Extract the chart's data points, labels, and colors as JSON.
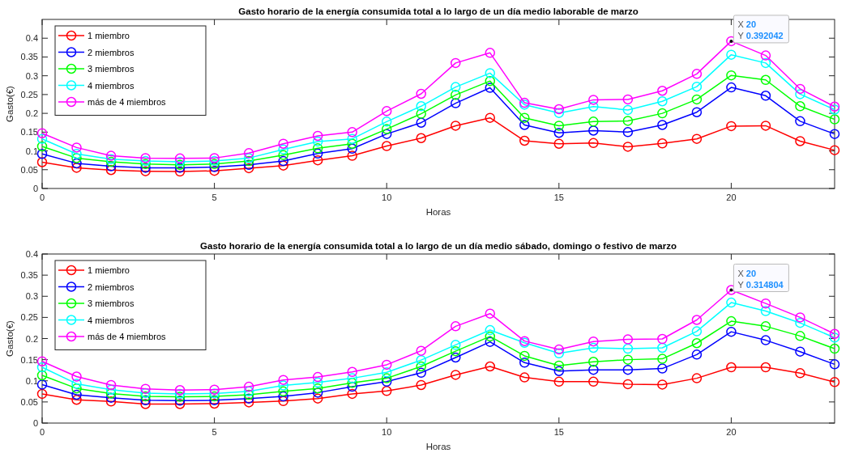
{
  "chart_data": [
    {
      "type": "line",
      "title": "Gasto horario de la energía consumida total a lo largo de un día medio laborable de marzo",
      "xlabel": "Horas",
      "ylabel": "Gasto(€)",
      "x": [
        0,
        1,
        2,
        3,
        4,
        5,
        6,
        7,
        8,
        9,
        10,
        11,
        12,
        13,
        14,
        15,
        16,
        17,
        18,
        19,
        20,
        21,
        22,
        23
      ],
      "series": [
        {
          "name": "1 miembro",
          "color": "#ff0000",
          "values": [
            0.07,
            0.055,
            0.049,
            0.046,
            0.045,
            0.047,
            0.054,
            0.061,
            0.075,
            0.087,
            0.113,
            0.134,
            0.167,
            0.188,
            0.127,
            0.119,
            0.121,
            0.111,
            0.12,
            0.132,
            0.166,
            0.167,
            0.126,
            0.102
          ]
        },
        {
          "name": "2 miembros",
          "color": "#0000ff",
          "values": [
            0.092,
            0.067,
            0.059,
            0.055,
            0.055,
            0.057,
            0.063,
            0.073,
            0.093,
            0.106,
            0.145,
            0.175,
            0.227,
            0.268,
            0.169,
            0.148,
            0.154,
            0.15,
            0.169,
            0.203,
            0.269,
            0.247,
            0.179,
            0.145
          ]
        },
        {
          "name": "3 miembros",
          "color": "#00ff00",
          "values": [
            0.112,
            0.081,
            0.071,
            0.065,
            0.063,
            0.065,
            0.073,
            0.089,
            0.107,
            0.119,
            0.158,
            0.199,
            0.249,
            0.286,
            0.188,
            0.167,
            0.178,
            0.18,
            0.2,
            0.237,
            0.301,
            0.289,
            0.219,
            0.184
          ]
        },
        {
          "name": "4 miembros",
          "color": "#00ffff",
          "values": [
            0.132,
            0.092,
            0.078,
            0.073,
            0.071,
            0.073,
            0.081,
            0.104,
            0.125,
            0.132,
            0.178,
            0.219,
            0.27,
            0.307,
            0.223,
            0.201,
            0.218,
            0.209,
            0.232,
            0.271,
            0.356,
            0.334,
            0.251,
            0.21
          ]
        },
        {
          "name": "más de 4 miembros",
          "color": "#ff00ff",
          "values": [
            0.147,
            0.109,
            0.087,
            0.081,
            0.08,
            0.081,
            0.094,
            0.119,
            0.14,
            0.15,
            0.206,
            0.252,
            0.334,
            0.361,
            0.228,
            0.211,
            0.236,
            0.237,
            0.26,
            0.305,
            0.392042,
            0.354,
            0.265,
            0.218
          ]
        }
      ],
      "xlim": [
        0,
        23
      ],
      "xticks": [
        0,
        5,
        10,
        15,
        20
      ],
      "ylim": [
        0,
        0.45
      ],
      "yticks": [
        0,
        0.05,
        0.1,
        0.15,
        0.2,
        0.25,
        0.3,
        0.35,
        0.4
      ],
      "grid": false,
      "legend": "top left",
      "marker": "circle",
      "line_style": "solid",
      "annotations": [
        {
          "text": "X 20\nY 0.392042",
          "x": 20,
          "y": 0.392042
        }
      ]
    },
    {
      "type": "line",
      "title": "Gasto horario de la energía consumida total a lo largo de un día medio sábado, domingo o festivo de marzo",
      "xlabel": "Horas",
      "ylabel": "Gasto(€)",
      "x": [
        0,
        1,
        2,
        3,
        4,
        5,
        6,
        7,
        8,
        9,
        10,
        11,
        12,
        13,
        14,
        15,
        16,
        17,
        18,
        19,
        20,
        21,
        22,
        23
      ],
      "series": [
        {
          "name": "1 miembro",
          "color": "#ff0000",
          "values": [
            0.069,
            0.055,
            0.051,
            0.045,
            0.045,
            0.046,
            0.049,
            0.052,
            0.058,
            0.069,
            0.076,
            0.09,
            0.114,
            0.134,
            0.108,
            0.098,
            0.098,
            0.092,
            0.091,
            0.106,
            0.132,
            0.132,
            0.118,
            0.097
          ]
        },
        {
          "name": "2 miembros",
          "color": "#0000ff",
          "values": [
            0.091,
            0.067,
            0.06,
            0.054,
            0.053,
            0.054,
            0.058,
            0.063,
            0.072,
            0.086,
            0.098,
            0.119,
            0.155,
            0.192,
            0.143,
            0.123,
            0.126,
            0.126,
            0.129,
            0.162,
            0.216,
            0.196,
            0.169,
            0.139
          ]
        },
        {
          "name": "3 miembros",
          "color": "#00ff00",
          "values": [
            0.113,
            0.082,
            0.07,
            0.063,
            0.062,
            0.063,
            0.067,
            0.075,
            0.082,
            0.095,
            0.106,
            0.134,
            0.17,
            0.205,
            0.159,
            0.136,
            0.145,
            0.15,
            0.152,
            0.189,
            0.241,
            0.229,
            0.206,
            0.176
          ]
        },
        {
          "name": "4 miembros",
          "color": "#00ffff",
          "values": [
            0.132,
            0.093,
            0.079,
            0.071,
            0.069,
            0.07,
            0.075,
            0.089,
            0.096,
            0.106,
            0.12,
            0.149,
            0.185,
            0.22,
            0.19,
            0.165,
            0.178,
            0.176,
            0.178,
            0.217,
            0.285,
            0.265,
            0.237,
            0.202
          ]
        },
        {
          "name": "más de 4 miembros",
          "color": "#ff00ff",
          "values": [
            0.146,
            0.11,
            0.09,
            0.081,
            0.078,
            0.079,
            0.086,
            0.102,
            0.109,
            0.121,
            0.138,
            0.171,
            0.229,
            0.259,
            0.194,
            0.174,
            0.193,
            0.198,
            0.199,
            0.244,
            0.314804,
            0.283,
            0.25,
            0.211
          ]
        }
      ],
      "xlim": [
        0,
        23
      ],
      "xticks": [
        0,
        5,
        10,
        15,
        20
      ],
      "ylim": [
        0,
        0.4
      ],
      "yticks": [
        0,
        0.05,
        0.1,
        0.15,
        0.2,
        0.25,
        0.3,
        0.35,
        0.4
      ],
      "grid": false,
      "legend": "top left",
      "marker": "circle",
      "line_style": "solid",
      "annotations": [
        {
          "text": "X 20\nY 0.314804",
          "x": 20,
          "y": 0.314804
        }
      ]
    }
  ]
}
